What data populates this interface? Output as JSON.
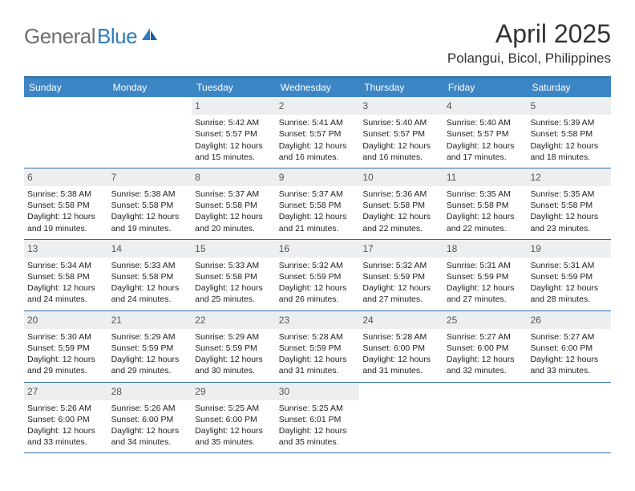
{
  "brand": {
    "text_gray": "General",
    "text_blue": "Blue"
  },
  "title": "April 2025",
  "location": "Polangui, Bicol, Philippines",
  "colors": {
    "header_bar": "#3d86c6",
    "rule": "#2f6fa8",
    "daynum_bg": "#eceeef",
    "logo_gray": "#6f6f6f",
    "logo_blue": "#2f7bbf"
  },
  "dow": [
    "Sunday",
    "Monday",
    "Tuesday",
    "Wednesday",
    "Thursday",
    "Friday",
    "Saturday"
  ],
  "weeks": [
    [
      null,
      null,
      {
        "n": "1",
        "sr": "Sunrise: 5:42 AM",
        "ss": "Sunset: 5:57 PM",
        "d1": "Daylight: 12 hours",
        "d2": "and 15 minutes."
      },
      {
        "n": "2",
        "sr": "Sunrise: 5:41 AM",
        "ss": "Sunset: 5:57 PM",
        "d1": "Daylight: 12 hours",
        "d2": "and 16 minutes."
      },
      {
        "n": "3",
        "sr": "Sunrise: 5:40 AM",
        "ss": "Sunset: 5:57 PM",
        "d1": "Daylight: 12 hours",
        "d2": "and 16 minutes."
      },
      {
        "n": "4",
        "sr": "Sunrise: 5:40 AM",
        "ss": "Sunset: 5:57 PM",
        "d1": "Daylight: 12 hours",
        "d2": "and 17 minutes."
      },
      {
        "n": "5",
        "sr": "Sunrise: 5:39 AM",
        "ss": "Sunset: 5:58 PM",
        "d1": "Daylight: 12 hours",
        "d2": "and 18 minutes."
      }
    ],
    [
      {
        "n": "6",
        "sr": "Sunrise: 5:38 AM",
        "ss": "Sunset: 5:58 PM",
        "d1": "Daylight: 12 hours",
        "d2": "and 19 minutes."
      },
      {
        "n": "7",
        "sr": "Sunrise: 5:38 AM",
        "ss": "Sunset: 5:58 PM",
        "d1": "Daylight: 12 hours",
        "d2": "and 19 minutes."
      },
      {
        "n": "8",
        "sr": "Sunrise: 5:37 AM",
        "ss": "Sunset: 5:58 PM",
        "d1": "Daylight: 12 hours",
        "d2": "and 20 minutes."
      },
      {
        "n": "9",
        "sr": "Sunrise: 5:37 AM",
        "ss": "Sunset: 5:58 PM",
        "d1": "Daylight: 12 hours",
        "d2": "and 21 minutes."
      },
      {
        "n": "10",
        "sr": "Sunrise: 5:36 AM",
        "ss": "Sunset: 5:58 PM",
        "d1": "Daylight: 12 hours",
        "d2": "and 22 minutes."
      },
      {
        "n": "11",
        "sr": "Sunrise: 5:35 AM",
        "ss": "Sunset: 5:58 PM",
        "d1": "Daylight: 12 hours",
        "d2": "and 22 minutes."
      },
      {
        "n": "12",
        "sr": "Sunrise: 5:35 AM",
        "ss": "Sunset: 5:58 PM",
        "d1": "Daylight: 12 hours",
        "d2": "and 23 minutes."
      }
    ],
    [
      {
        "n": "13",
        "sr": "Sunrise: 5:34 AM",
        "ss": "Sunset: 5:58 PM",
        "d1": "Daylight: 12 hours",
        "d2": "and 24 minutes."
      },
      {
        "n": "14",
        "sr": "Sunrise: 5:33 AM",
        "ss": "Sunset: 5:58 PM",
        "d1": "Daylight: 12 hours",
        "d2": "and 24 minutes."
      },
      {
        "n": "15",
        "sr": "Sunrise: 5:33 AM",
        "ss": "Sunset: 5:58 PM",
        "d1": "Daylight: 12 hours",
        "d2": "and 25 minutes."
      },
      {
        "n": "16",
        "sr": "Sunrise: 5:32 AM",
        "ss": "Sunset: 5:59 PM",
        "d1": "Daylight: 12 hours",
        "d2": "and 26 minutes."
      },
      {
        "n": "17",
        "sr": "Sunrise: 5:32 AM",
        "ss": "Sunset: 5:59 PM",
        "d1": "Daylight: 12 hours",
        "d2": "and 27 minutes."
      },
      {
        "n": "18",
        "sr": "Sunrise: 5:31 AM",
        "ss": "Sunset: 5:59 PM",
        "d1": "Daylight: 12 hours",
        "d2": "and 27 minutes."
      },
      {
        "n": "19",
        "sr": "Sunrise: 5:31 AM",
        "ss": "Sunset: 5:59 PM",
        "d1": "Daylight: 12 hours",
        "d2": "and 28 minutes."
      }
    ],
    [
      {
        "n": "20",
        "sr": "Sunrise: 5:30 AM",
        "ss": "Sunset: 5:59 PM",
        "d1": "Daylight: 12 hours",
        "d2": "and 29 minutes."
      },
      {
        "n": "21",
        "sr": "Sunrise: 5:29 AM",
        "ss": "Sunset: 5:59 PM",
        "d1": "Daylight: 12 hours",
        "d2": "and 29 minutes."
      },
      {
        "n": "22",
        "sr": "Sunrise: 5:29 AM",
        "ss": "Sunset: 5:59 PM",
        "d1": "Daylight: 12 hours",
        "d2": "and 30 minutes."
      },
      {
        "n": "23",
        "sr": "Sunrise: 5:28 AM",
        "ss": "Sunset: 5:59 PM",
        "d1": "Daylight: 12 hours",
        "d2": "and 31 minutes."
      },
      {
        "n": "24",
        "sr": "Sunrise: 5:28 AM",
        "ss": "Sunset: 6:00 PM",
        "d1": "Daylight: 12 hours",
        "d2": "and 31 minutes."
      },
      {
        "n": "25",
        "sr": "Sunrise: 5:27 AM",
        "ss": "Sunset: 6:00 PM",
        "d1": "Daylight: 12 hours",
        "d2": "and 32 minutes."
      },
      {
        "n": "26",
        "sr": "Sunrise: 5:27 AM",
        "ss": "Sunset: 6:00 PM",
        "d1": "Daylight: 12 hours",
        "d2": "and 33 minutes."
      }
    ],
    [
      {
        "n": "27",
        "sr": "Sunrise: 5:26 AM",
        "ss": "Sunset: 6:00 PM",
        "d1": "Daylight: 12 hours",
        "d2": "and 33 minutes."
      },
      {
        "n": "28",
        "sr": "Sunrise: 5:26 AM",
        "ss": "Sunset: 6:00 PM",
        "d1": "Daylight: 12 hours",
        "d2": "and 34 minutes."
      },
      {
        "n": "29",
        "sr": "Sunrise: 5:25 AM",
        "ss": "Sunset: 6:00 PM",
        "d1": "Daylight: 12 hours",
        "d2": "and 35 minutes."
      },
      {
        "n": "30",
        "sr": "Sunrise: 5:25 AM",
        "ss": "Sunset: 6:01 PM",
        "d1": "Daylight: 12 hours",
        "d2": "and 35 minutes."
      },
      null,
      null,
      null
    ]
  ]
}
